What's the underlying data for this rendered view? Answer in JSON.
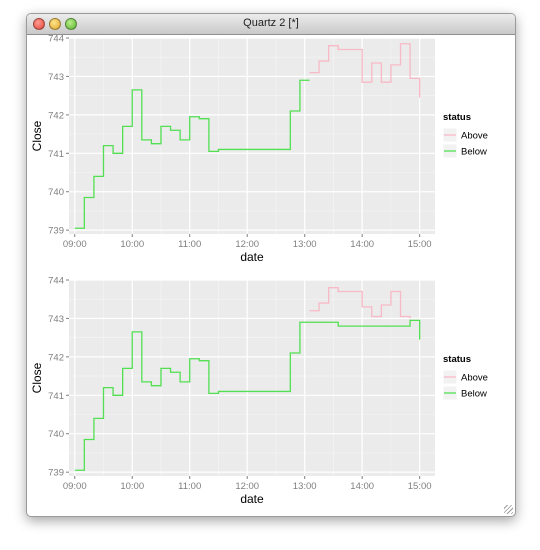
{
  "window": {
    "title": "Quartz 2 [*]"
  },
  "colors": {
    "above": "#f8b9c6",
    "below": "#52e052",
    "panel": "#ebebeb",
    "grid": "#ffffff"
  },
  "legend": {
    "title": "status",
    "items": [
      "Above",
      "Below"
    ]
  },
  "chart_data": [
    {
      "type": "line",
      "style": "step",
      "xlabel": "date",
      "ylabel": "Close",
      "x_ticks": [
        "09:00",
        "10:00",
        "11:00",
        "12:00",
        "13:00",
        "14:00",
        "15:00"
      ],
      "y_ticks": [
        739,
        740,
        741,
        742,
        743,
        744
      ],
      "xlim": [
        "08:54",
        "15:16"
      ],
      "ylim": [
        738.9,
        744.0
      ],
      "grid": true,
      "legend_position": "right",
      "series": [
        {
          "name": "Below",
          "points": [
            [
              "09:00",
              739.05
            ],
            [
              "09:10",
              739.85
            ],
            [
              "09:20",
              740.4
            ],
            [
              "09:30",
              741.2
            ],
            [
              "09:40",
              741.0
            ],
            [
              "09:50",
              741.7
            ],
            [
              "10:00",
              742.65
            ],
            [
              "10:10",
              741.35
            ],
            [
              "10:20",
              741.25
            ],
            [
              "10:30",
              741.7
            ],
            [
              "10:40",
              741.6
            ],
            [
              "10:50",
              741.35
            ],
            [
              "11:00",
              741.95
            ],
            [
              "11:10",
              741.9
            ],
            [
              "11:20",
              741.05
            ],
            [
              "11:30",
              741.1
            ],
            [
              "12:00",
              741.1
            ],
            [
              "12:30",
              741.1
            ],
            [
              "12:45",
              742.1
            ],
            [
              "12:55",
              742.9
            ],
            [
              "13:05",
              742.9
            ]
          ]
        },
        {
          "name": "Above",
          "points": [
            [
              "13:05",
              743.1
            ],
            [
              "13:15",
              743.4
            ],
            [
              "13:25",
              743.8
            ],
            [
              "13:35",
              743.7
            ],
            [
              "13:45",
              743.7
            ],
            [
              "13:55",
              743.7
            ],
            [
              "14:00",
              742.85
            ],
            [
              "14:10",
              743.35
            ],
            [
              "14:20",
              742.85
            ],
            [
              "14:30",
              743.3
            ],
            [
              "14:40",
              743.85
            ],
            [
              "14:50",
              742.95
            ],
            [
              "15:00",
              742.45
            ]
          ]
        }
      ]
    },
    {
      "type": "line",
      "style": "step",
      "xlabel": "date",
      "ylabel": "Close",
      "x_ticks": [
        "09:00",
        "10:00",
        "11:00",
        "12:00",
        "13:00",
        "14:00",
        "15:00"
      ],
      "y_ticks": [
        739,
        740,
        741,
        742,
        743,
        744
      ],
      "xlim": [
        "08:54",
        "15:16"
      ],
      "ylim": [
        738.9,
        744.0
      ],
      "grid": true,
      "legend_position": "right",
      "series": [
        {
          "name": "Below",
          "points": [
            [
              "09:00",
              739.05
            ],
            [
              "09:10",
              739.85
            ],
            [
              "09:20",
              740.4
            ],
            [
              "09:30",
              741.2
            ],
            [
              "09:40",
              741.0
            ],
            [
              "09:50",
              741.7
            ],
            [
              "10:00",
              742.65
            ],
            [
              "10:10",
              741.35
            ],
            [
              "10:20",
              741.25
            ],
            [
              "10:30",
              741.7
            ],
            [
              "10:40",
              741.6
            ],
            [
              "10:50",
              741.35
            ],
            [
              "11:00",
              741.95
            ],
            [
              "11:10",
              741.9
            ],
            [
              "11:20",
              741.05
            ],
            [
              "11:30",
              741.1
            ],
            [
              "12:00",
              741.1
            ],
            [
              "12:30",
              741.1
            ],
            [
              "12:45",
              742.1
            ],
            [
              "12:55",
              742.9
            ],
            [
              "13:05",
              742.9
            ],
            [
              "13:35",
              742.8
            ],
            [
              "13:45",
              742.8
            ],
            [
              "14:00",
              742.8
            ],
            [
              "14:10",
              742.8
            ],
            [
              "14:20",
              742.8
            ],
            [
              "14:50",
              742.95
            ],
            [
              "15:00",
              742.45
            ]
          ]
        },
        {
          "name": "Above",
          "points": [
            [
              "13:05",
              743.2
            ],
            [
              "13:15",
              743.4
            ],
            [
              "13:25",
              743.8
            ],
            [
              "13:35",
              743.7
            ],
            [
              "13:45",
              743.7
            ],
            [
              "13:55",
              743.7
            ],
            [
              "14:00",
              743.3
            ],
            [
              "14:10",
              743.05
            ],
            [
              "14:20",
              743.35
            ],
            [
              "14:30",
              743.7
            ],
            [
              "14:40",
              743.05
            ],
            [
              "14:50",
              743.0
            ]
          ]
        }
      ]
    }
  ]
}
